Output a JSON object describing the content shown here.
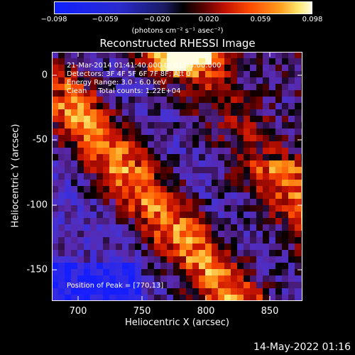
{
  "colorbar": {
    "ticks": [
      "−0.098",
      "−0.059",
      "−0.020",
      "0.020",
      "0.059",
      "0.098"
    ],
    "units": "(photons cm⁻² s⁻¹ asec⁻²)"
  },
  "title": "Reconstructed RHESSI Image",
  "annotations": {
    "time": "21-Mar-2014 01:41:40.000 to 01:43:00.000",
    "detectors": "Detectors: 3F 4F 5F 6F 7F 8F; Att 0",
    "energy": "Energy Range: 3.0 - 6.0 keV",
    "clean": "Clean     Total counts: 1.22E+04",
    "peak": "Position of Peak = [770,13]"
  },
  "chart_data": {
    "type": "heatmap",
    "title": "Reconstructed RHESSI Image",
    "xlabel": "Heliocentric X (arcsec)",
    "ylabel": "Heliocentric Y (arcsec)",
    "xlim": [
      680,
      873
    ],
    "ylim": [
      -173,
      18
    ],
    "xticks": [
      "700",
      "750",
      "800",
      "850"
    ],
    "yticks": [
      "0",
      "-50",
      "-100",
      "-150"
    ],
    "color_range": [
      -0.098,
      0.098
    ],
    "peak": [
      770,
      13
    ]
  },
  "footer": "14-May-2022 01:16",
  "colors": {
    "background": "#000000",
    "text": "#ffffff"
  }
}
